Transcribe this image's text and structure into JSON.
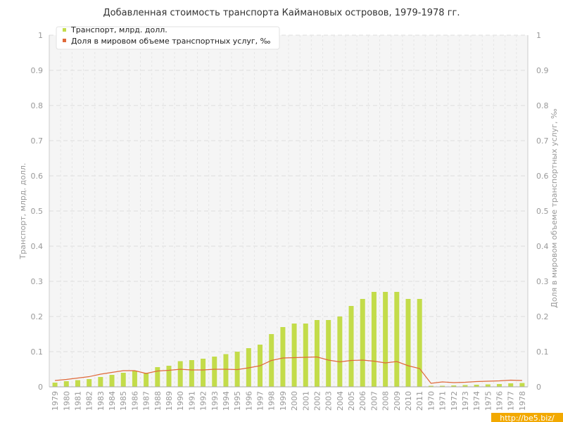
{
  "chart_data": {
    "type": "bar",
    "title": "Добавленная стоимость транспорта Каймановых островов, 1979-1978 гг.",
    "xlabel": "",
    "ylabel": "Транспорт, млрд. долл.",
    "y2label": "Доля в мировом объеме транспортных услуг, ‰",
    "ylim": [
      0,
      1
    ],
    "y2lim": [
      0,
      1
    ],
    "yticks": [
      "0",
      "0.1",
      "0.2",
      "0.3",
      "0.4",
      "0.5",
      "0.6",
      "0.7",
      "0.8",
      "0.9",
      "1"
    ],
    "y2ticks": [
      "0",
      "0.1",
      "0.2",
      "0.3",
      "0.4",
      "0.5",
      "0.6",
      "0.7",
      "0.8",
      "0.9",
      "1"
    ],
    "grid": true,
    "legend_position": "top-left",
    "categories": [
      "1979",
      "1980",
      "1981",
      "1982",
      "1983",
      "1984",
      "1985",
      "1986",
      "1987",
      "1988",
      "1989",
      "1990",
      "1991",
      "1992",
      "1993",
      "1994",
      "1995",
      "1996",
      "1997",
      "1998",
      "1999",
      "2000",
      "2001",
      "2002",
      "2003",
      "2004",
      "2005",
      "2006",
      "2007",
      "2008",
      "2009",
      "2010",
      "2011",
      "1970",
      "1971",
      "1972",
      "1973",
      "1974",
      "1975",
      "1976",
      "1977",
      "1978"
    ],
    "series": [
      {
        "name": "Транспорт, млрд. долл.",
        "type": "bar",
        "axis": "left",
        "color": "#c3dc4a",
        "values": [
          0.012,
          0.016,
          0.019,
          0.022,
          0.028,
          0.034,
          0.04,
          0.046,
          0.04,
          0.056,
          0.06,
          0.073,
          0.076,
          0.08,
          0.086,
          0.093,
          0.1,
          0.11,
          0.12,
          0.15,
          0.17,
          0.18,
          0.18,
          0.19,
          0.19,
          0.2,
          0.23,
          0.25,
          0.27,
          0.27,
          0.27,
          0.25,
          0.25,
          0.003,
          0.003,
          0.004,
          0.005,
          0.006,
          0.007,
          0.008,
          0.01,
          0.011
        ]
      },
      {
        "name": "Доля в мировом объеме транспортных услуг, ‰",
        "type": "line",
        "axis": "right",
        "color": "#e0693a",
        "values": [
          0.018,
          0.021,
          0.025,
          0.029,
          0.036,
          0.041,
          0.046,
          0.046,
          0.038,
          0.045,
          0.047,
          0.05,
          0.048,
          0.048,
          0.05,
          0.05,
          0.049,
          0.054,
          0.06,
          0.075,
          0.082,
          0.083,
          0.084,
          0.085,
          0.076,
          0.071,
          0.075,
          0.076,
          0.073,
          0.068,
          0.072,
          0.06,
          0.052,
          0.01,
          0.014,
          0.012,
          0.013,
          0.015,
          0.016,
          0.017,
          0.019,
          0.018
        ]
      }
    ]
  },
  "watermark": "http://be5.biz/"
}
